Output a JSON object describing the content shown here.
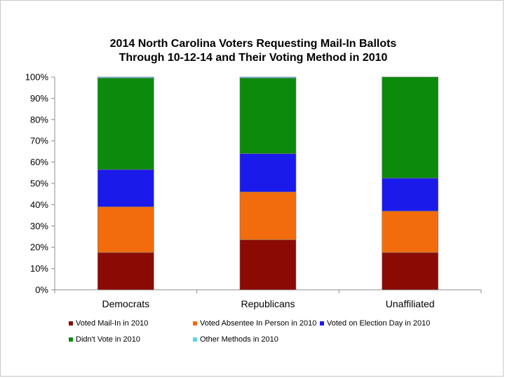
{
  "chart_data": {
    "type": "bar",
    "stacked": true,
    "title": [
      "2014 North Carolina Voters Requesting Mail-In Ballots",
      "Through 10-12-14 and Their Voting Method in 2010"
    ],
    "xlabel": "",
    "ylabel": "",
    "ylim": [
      0,
      100
    ],
    "y_ticks": [
      "0%",
      "10%",
      "20%",
      "30%",
      "40%",
      "50%",
      "60%",
      "70%",
      "80%",
      "90%",
      "100%"
    ],
    "grid": false,
    "legend_position": "bottom",
    "categories": [
      "Democrats",
      "Republicans",
      "Unaffiliated"
    ],
    "series": [
      {
        "name": "Voted Mail-In in 2010",
        "color": "#8b0b04",
        "values": [
          17.5,
          23.5,
          17.5
        ]
      },
      {
        "name": "Voted Absentee In Person in 2010",
        "color": "#f26c0d",
        "values": [
          21.5,
          22.5,
          19.5
        ]
      },
      {
        "name": "Voted on Election Day in 2010",
        "color": "#1a1aeb",
        "values": [
          17.5,
          18.0,
          15.5
        ]
      },
      {
        "name": "Didn't Vote in 2010",
        "color": "#0c8a0c",
        "values": [
          43.0,
          35.5,
          47.5
        ]
      },
      {
        "name": "Other Methods in 2010",
        "color": "#5fd3e8",
        "values": [
          0.5,
          0.5,
          0.0
        ]
      }
    ]
  }
}
